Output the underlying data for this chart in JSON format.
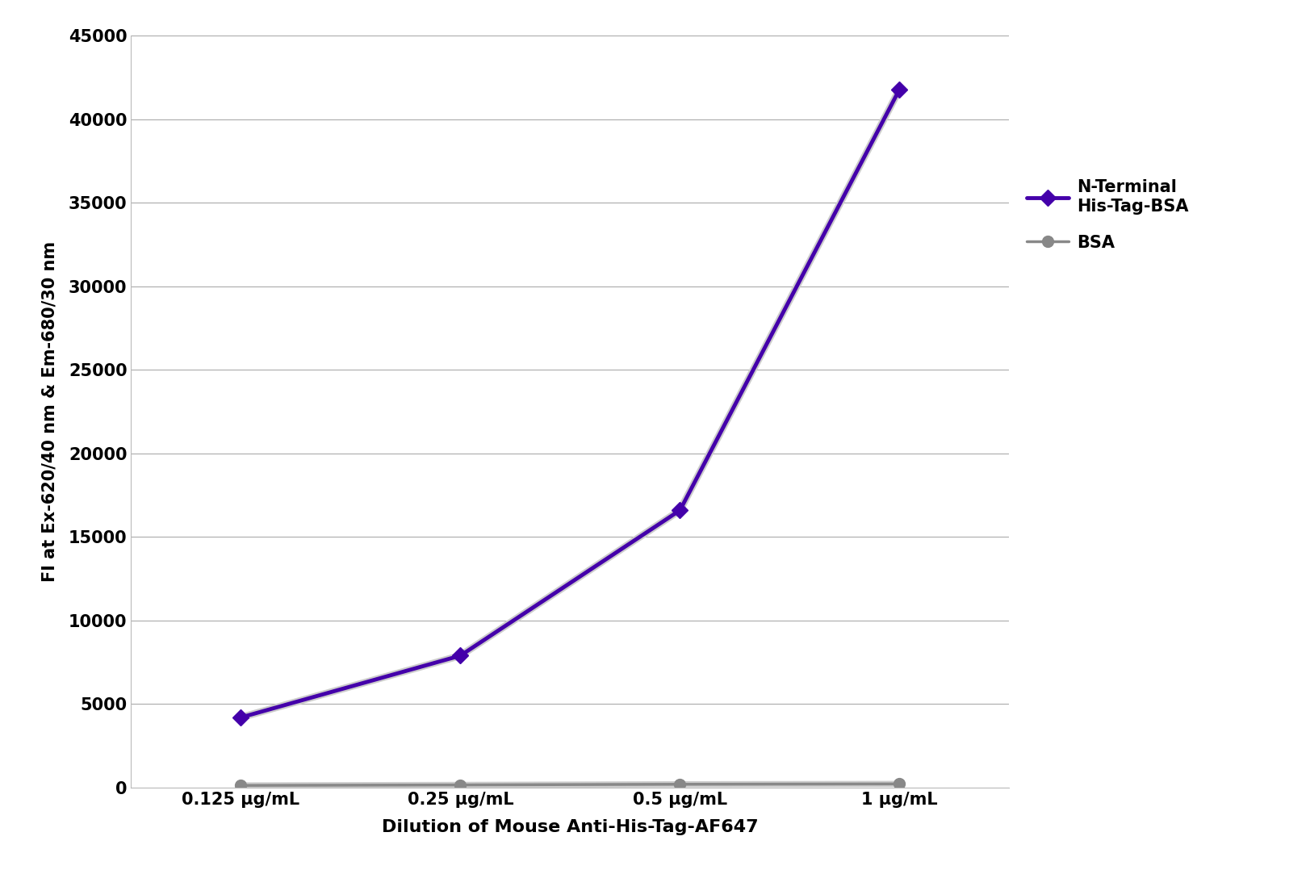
{
  "x_labels": [
    "0.125 μg/mL",
    "0.25 μg/mL",
    "0.5 μg/mL",
    "1 μg/mL"
  ],
  "x_values": [
    1,
    2,
    3,
    4
  ],
  "series": [
    {
      "label": "N-Terminal\nHis-Tag-BSA",
      "y_values": [
        4200,
        7900,
        16600,
        41800
      ],
      "color": "#4400AA",
      "marker": "D",
      "marker_color": "#4400AA",
      "linewidth": 3.5,
      "markersize": 10,
      "zorder": 3
    },
    {
      "label": "BSA",
      "y_values": [
        130,
        160,
        200,
        220
      ],
      "color": "#888888",
      "marker": "o",
      "marker_color": "#888888",
      "linewidth": 2.5,
      "markersize": 10,
      "zorder": 2
    }
  ],
  "ylabel": "FI at Ex-620/40 nm & Em-680/30 nm",
  "xlabel": "Dilution of Mouse Anti-His-Tag-AF647",
  "ylim": [
    0,
    45000
  ],
  "yticks": [
    0,
    5000,
    10000,
    15000,
    20000,
    25000,
    30000,
    35000,
    40000,
    45000
  ],
  "background_color": "#ffffff",
  "plot_background": "#ffffff",
  "grid_color": "#aaaaaa",
  "ylabel_fontsize": 15,
  "xlabel_fontsize": 16,
  "tick_fontsize": 15,
  "legend_fontsize": 15
}
